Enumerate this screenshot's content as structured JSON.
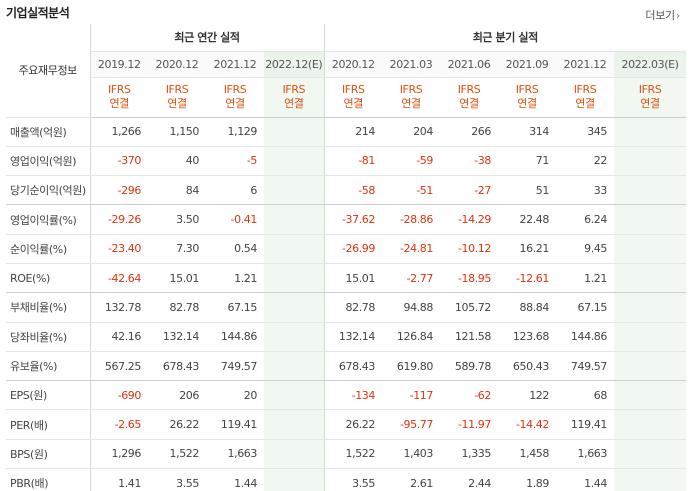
{
  "section": {
    "title": "기업실적분석",
    "more_label": "더보기"
  },
  "header": {
    "label_col": "주요재무정보",
    "annual_group": "최근 연간 실적",
    "quarter_group": "최근 분기 실적",
    "annual_dates": [
      "2019.12",
      "2020.12",
      "2021.12",
      "2022.12(E)"
    ],
    "quarter_dates": [
      "2020.12",
      "2021.03",
      "2021.06",
      "2021.09",
      "2021.12",
      "2022.03(E)"
    ],
    "ifrs_line1": "IFRS",
    "ifrs_line2": "연결"
  },
  "rows": [
    {
      "label": "매출액(억원)",
      "annual": [
        "1,266",
        "1,150",
        "1,129",
        ""
      ],
      "quarter": [
        "214",
        "204",
        "266",
        "314",
        "345",
        ""
      ]
    },
    {
      "label": "영업이익(억원)",
      "annual": [
        "-370",
        "40",
        "-5",
        ""
      ],
      "quarter": [
        "-81",
        "-59",
        "-38",
        "71",
        "22",
        ""
      ]
    },
    {
      "label": "당기순이익(억원)",
      "annual": [
        "-296",
        "84",
        "6",
        ""
      ],
      "quarter": [
        "-58",
        "-51",
        "-27",
        "51",
        "33",
        ""
      ]
    },
    {
      "label": "영업이익률(%)",
      "annual": [
        "-29.26",
        "3.50",
        "-0.41",
        ""
      ],
      "quarter": [
        "-37.62",
        "-28.86",
        "-14.29",
        "22.48",
        "6.24",
        ""
      ]
    },
    {
      "label": "순이익률(%)",
      "annual": [
        "-23.40",
        "7.30",
        "0.54",
        ""
      ],
      "quarter": [
        "-26.99",
        "-24.81",
        "-10.12",
        "16.21",
        "9.45",
        ""
      ]
    },
    {
      "label": "ROE(%)",
      "annual": [
        "-42.64",
        "15.01",
        "1.21",
        ""
      ],
      "quarter": [
        "15.01",
        "-2.77",
        "-18.95",
        "-12.61",
        "1.21",
        ""
      ]
    },
    {
      "label": "부채비율(%)",
      "annual": [
        "132.78",
        "82.78",
        "67.15",
        ""
      ],
      "quarter": [
        "82.78",
        "94.88",
        "105.72",
        "88.84",
        "67.15",
        ""
      ]
    },
    {
      "label": "당좌비율(%)",
      "annual": [
        "42.16",
        "132.14",
        "144.86",
        ""
      ],
      "quarter": [
        "132.14",
        "126.84",
        "121.58",
        "123.68",
        "144.86",
        ""
      ]
    },
    {
      "label": "유보율(%)",
      "annual": [
        "567.25",
        "678.43",
        "749.57",
        ""
      ],
      "quarter": [
        "678.43",
        "619.80",
        "589.78",
        "650.43",
        "749.57",
        ""
      ]
    },
    {
      "label": "EPS(원)",
      "annual": [
        "-690",
        "206",
        "20",
        ""
      ],
      "quarter": [
        "-134",
        "-117",
        "-62",
        "122",
        "68",
        ""
      ]
    },
    {
      "label": "PER(배)",
      "annual": [
        "-2.65",
        "26.22",
        "119.41",
        ""
      ],
      "quarter": [
        "26.22",
        "-95.77",
        "-11.97",
        "-14.42",
        "119.41",
        ""
      ]
    },
    {
      "label": "BPS(원)",
      "annual": [
        "1,296",
        "1,522",
        "1,663",
        ""
      ],
      "quarter": [
        "1,522",
        "1,403",
        "1,335",
        "1,458",
        "1,663",
        ""
      ]
    },
    {
      "label": "PBR(배)",
      "annual": [
        "1.41",
        "3.55",
        "1.44",
        ""
      ],
      "quarter": [
        "3.55",
        "2.61",
        "2.44",
        "1.89",
        "1.44",
        ""
      ]
    }
  ],
  "colors": {
    "negative": "#e0330f",
    "ifrs": "#e0500f",
    "estimate_bg": "#f1f8f1"
  }
}
